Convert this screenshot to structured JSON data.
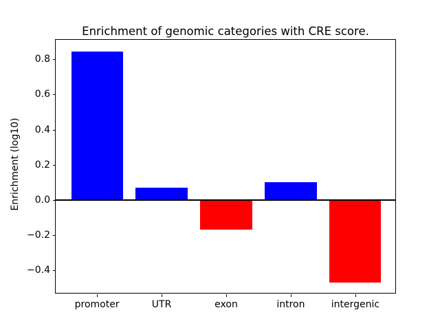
{
  "title": "Enrichment of genomic categories with CRE score.",
  "chart_data": {
    "type": "bar",
    "categories": [
      "promoter",
      "UTR",
      "exon",
      "intron",
      "intergenic"
    ],
    "values": [
      0.845,
      0.07,
      -0.17,
      0.1,
      -0.47
    ],
    "title": "Enrichment of genomic categories with CRE score.",
    "xlabel": "",
    "ylabel": "Enrichment (log10)",
    "ylim": [
      -0.536,
      0.911
    ],
    "xlim": [
      -0.64,
      4.64
    ],
    "bar_width": 0.8,
    "yticks": [
      0.8,
      0.6,
      0.4,
      0.2,
      0.0,
      -0.2,
      -0.4
    ],
    "ytick_labels": [
      "0.8",
      "0.6",
      "0.4",
      "0.2",
      "0.0",
      "−0.2",
      "−0.4"
    ],
    "positive_color": "#0000ff",
    "negative_color": "#ff0000",
    "bar_colors": [
      "#0000ff",
      "#0000ff",
      "#ff0000",
      "#0000ff",
      "#ff0000"
    ],
    "zero_line": true,
    "grid": false,
    "legend": null
  }
}
